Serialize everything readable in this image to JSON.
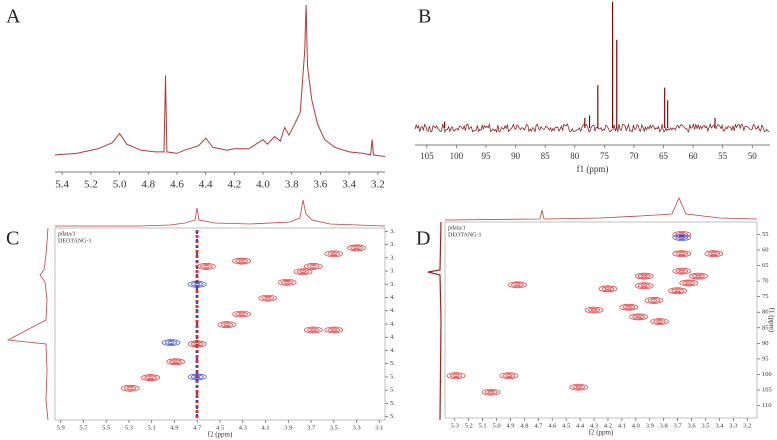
{
  "chart_data": [
    {
      "type": "line",
      "title": "A",
      "color": "#b03a3a",
      "xlim": [
        5.45,
        3.15
      ],
      "ylim": [
        0,
        100
      ],
      "xticks": [
        5.4,
        5.2,
        {
          "value": 5,
          "label": "5.0"
        },
        4.8,
        4.6,
        4.4,
        4.2,
        {
          "value": 4,
          "label": "4.0"
        },
        3.8,
        3.6,
        3.4,
        3.2
      ],
      "x": [
        5.45,
        5.3,
        5.15,
        5.05,
        5,
        4.95,
        4.85,
        4.75,
        4.69,
        4.68,
        4.67,
        4.6,
        4.55,
        4.45,
        4.4,
        4.35,
        4.25,
        4.2,
        4.1,
        4.05,
        4,
        3.97,
        3.92,
        3.88,
        3.85,
        3.82,
        3.78,
        3.74,
        3.71,
        3.7,
        3.69,
        3.66,
        3.62,
        3.57,
        3.5,
        3.4,
        3.3,
        3.25,
        3.24,
        3.23,
        3.15
      ],
      "values": [
        2,
        3,
        6,
        10,
        16,
        9,
        5,
        4,
        4,
        54,
        4,
        3,
        5,
        8,
        13,
        7,
        5,
        6,
        6,
        9,
        12,
        9,
        14,
        11,
        20,
        15,
        22,
        30,
        70,
        100,
        60,
        38,
        22,
        12,
        7,
        4,
        3,
        2,
        12,
        2,
        1
      ]
    },
    {
      "type": "stick",
      "title": "B",
      "xlabel": "f1 (ppm)",
      "color": "#7a0a0a",
      "xlim": [
        107,
        47
      ],
      "ylim": [
        0,
        100
      ],
      "xticks": [
        105,
        100,
        95,
        90,
        85,
        80,
        75,
        70,
        65,
        60,
        55,
        50
      ],
      "x": [
        102,
        78.3,
        77.5,
        76.1,
        73.6,
        72.9,
        64.8,
        64.3,
        56.3
      ],
      "values": [
        5,
        8,
        10,
        34,
        100,
        70,
        32,
        22,
        8
      ]
    },
    {
      "type": "contour",
      "title": "C",
      "notes": [
        "pdata/1",
        "DEOTANG-1"
      ],
      "xlabel": "f2 (ppm)",
      "xlim": [
        5.95,
        3.05
      ],
      "ylim": [
        3.05,
        5.95
      ],
      "xticks": [
        5.9,
        5.7,
        5.5,
        5.3,
        5.1,
        4.9,
        4.7,
        4.5,
        4.3,
        4.1,
        3.9,
        3.7,
        3.5,
        3.3,
        3.1
      ],
      "yticks": [
        {
          "value": 3.1,
          "label": "3."
        },
        {
          "value": 3.3,
          "label": "3."
        },
        {
          "value": 3.5,
          "label": "3."
        },
        {
          "value": 3.7,
          "label": "3."
        },
        {
          "value": 3.9,
          "label": "3."
        },
        {
          "value": 4.1,
          "label": "4."
        },
        {
          "value": 4.3,
          "label": "4."
        },
        {
          "value": 4.5,
          "label": "4."
        },
        {
          "value": 4.7,
          "label": "4."
        },
        {
          "value": 4.9,
          "label": "4."
        },
        {
          "value": 5.1,
          "label": "5."
        },
        {
          "value": 5.3,
          "label": "5."
        },
        {
          "value": 5.5,
          "label": "5."
        },
        {
          "value": 5.7,
          "label": "5."
        },
        {
          "value": 5.9,
          "label": "5."
        }
      ],
      "series": [
        {
          "color": "#e03030",
          "x": [
            3.5,
            3.68,
            3.77,
            3.91,
            4.08,
            4.31,
            4.44,
            4.7,
            4.89,
            5.11,
            5.29,
            3.68,
            3.5,
            4.62,
            4.31,
            3.3
          ],
          "values": [
            3.44,
            3.63,
            3.71,
            3.87,
            4.11,
            4.35,
            4.51,
            4.8,
            5.07,
            5.31,
            5.47,
            4.59,
            4.59,
            3.63,
            3.55,
            3.35
          ]
        },
        {
          "color": "#3040d0",
          "x": [
            4.93,
            4.7,
            4.7
          ],
          "values": [
            4.78,
            3.9,
            5.3
          ]
        }
      ]
    },
    {
      "type": "contour",
      "title": "D",
      "notes": [
        "pdata/1",
        "DEOTANG-1"
      ],
      "xlabel": "f2 (ppm)",
      "ylabel": "f1 (ppm)",
      "xlim": [
        5.37,
        3.13
      ],
      "ylim": [
        51,
        114
      ],
      "xticks": [
        5.3,
        5.2,
        5.1,
        {
          "value": 5,
          "label": "5.0"
        },
        4.9,
        4.8,
        4.7,
        4.6,
        4.5,
        4.4,
        4.3,
        4.2,
        4.1,
        {
          "value": 4,
          "label": "4.0"
        },
        3.9,
        3.8,
        3.7,
        3.6,
        3.5,
        3.4,
        3.3,
        3.2
      ],
      "yticks": [
        55,
        60,
        65,
        70,
        75,
        80,
        85,
        90,
        95,
        100,
        105,
        110
      ],
      "series": [
        {
          "color": "#e03030",
          "x": [
            3.67,
            3.67,
            3.44,
            3.67,
            3.94,
            3.55,
            3.62,
            4.85,
            3.94,
            4.2,
            3.7,
            3.87,
            4.3,
            4.05,
            3.98,
            3.83,
            4.91,
            4.41,
            5.04,
            5.29
          ],
          "values": [
            55,
            61.2,
            61.2,
            66.8,
            68.4,
            68.4,
            70.6,
            71.2,
            71.5,
            72.5,
            73.1,
            76.2,
            79.3,
            78.4,
            81.5,
            83,
            100.4,
            104.1,
            105.7,
            100.4
          ]
        },
        {
          "color": "#3040d0",
          "x": [
            3.67
          ],
          "values": [
            56
          ]
        }
      ]
    }
  ]
}
